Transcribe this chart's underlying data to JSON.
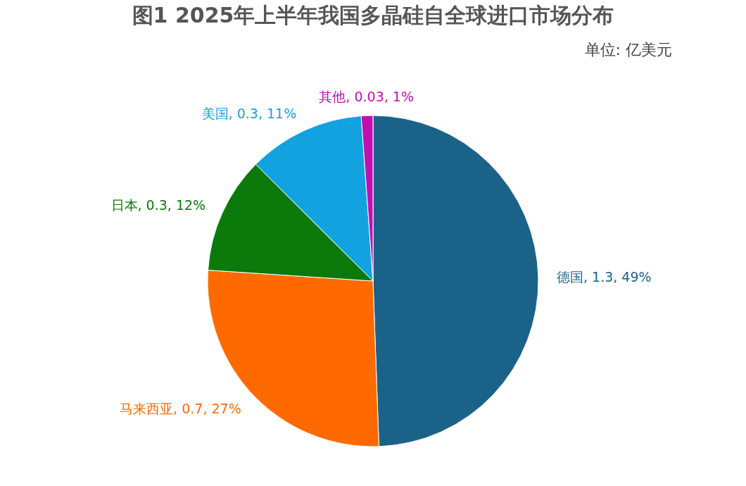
{
  "chart_data": {
    "type": "pie",
    "title": "图1   2025年上半年我国多晶硅自全球进口市场分布",
    "subtitle": "单位:  亿美元",
    "categories": [
      "德国",
      "马来西亚",
      "日本",
      "美国",
      "其他"
    ],
    "values": [
      1.3,
      0.7,
      0.3,
      0.3,
      0.03
    ],
    "colors": [
      "#1b6288",
      "#ff6a00",
      "#0b7a0b",
      "#12a2e0",
      "#c010b0"
    ],
    "value_labels": [
      "1.3, 49%",
      "0.7, 27%",
      "0.3, 12%",
      "0.3, 11%",
      "0.03, 1%"
    ]
  }
}
